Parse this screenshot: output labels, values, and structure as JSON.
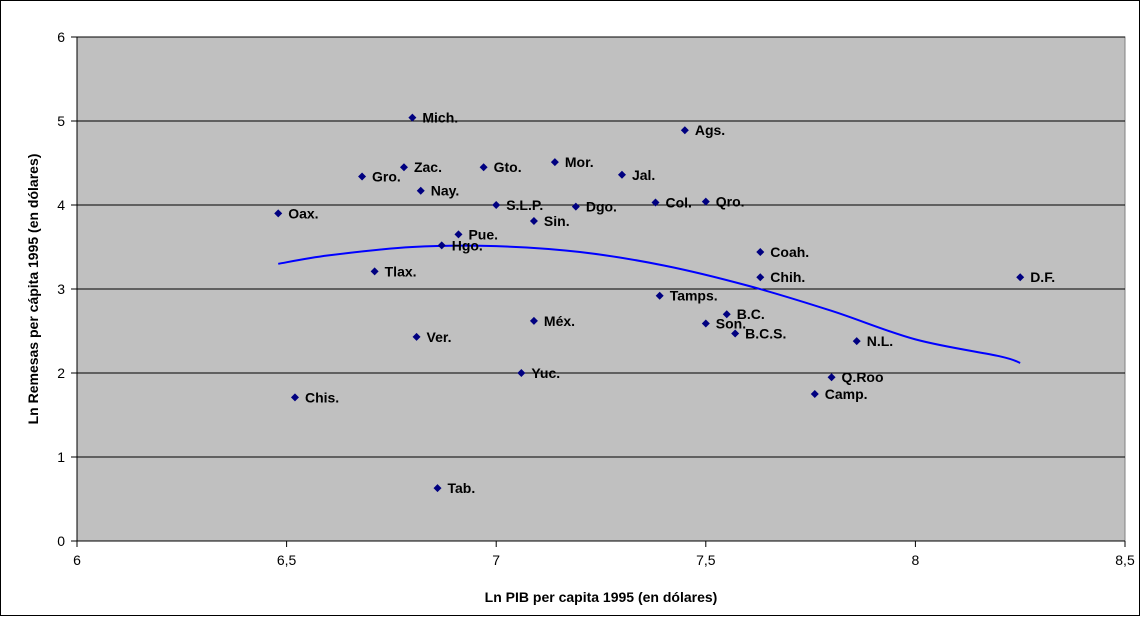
{
  "chart_data": {
    "type": "scatter",
    "title": "",
    "xlabel": "Ln PIB per capita 1995 (en dólares)",
    "ylabel": "Ln Remesas per cápita 1995 (en dólares)",
    "xlim": [
      6,
      8.5
    ],
    "ylim": [
      0,
      6
    ],
    "x_ticks": [
      6,
      6.5,
      7,
      7.5,
      8,
      8.5
    ],
    "x_tick_labels": [
      "6",
      "6,5",
      "7",
      "7,5",
      "8",
      "8,5"
    ],
    "y_ticks": [
      0,
      1,
      2,
      3,
      4,
      5,
      6
    ],
    "y_tick_labels": [
      "0",
      "1",
      "2",
      "3",
      "4",
      "5",
      "6"
    ],
    "grid": "horizontal",
    "legend": "none",
    "colors": {
      "plot_background": "#c0c0c0",
      "marker": "#000080",
      "trend_line": "#0000ff",
      "gridline": "#000000"
    },
    "points": [
      {
        "label": "Mich.",
        "x": 6.8,
        "y": 5.04
      },
      {
        "label": "Ags.",
        "x": 7.45,
        "y": 4.89
      },
      {
        "label": "Zac.",
        "x": 6.78,
        "y": 4.45
      },
      {
        "label": "Gto.",
        "x": 6.97,
        "y": 4.45
      },
      {
        "label": "Mor.",
        "x": 7.14,
        "y": 4.51
      },
      {
        "label": "Gro.",
        "x": 6.68,
        "y": 4.34
      },
      {
        "label": "Jal.",
        "x": 7.3,
        "y": 4.36
      },
      {
        "label": "Nay.",
        "x": 6.82,
        "y": 4.17
      },
      {
        "label": "S.L.P.",
        "x": 7.0,
        "y": 4.0
      },
      {
        "label": "Col.",
        "x": 7.38,
        "y": 4.03
      },
      {
        "label": "Qro.",
        "x": 7.5,
        "y": 4.04
      },
      {
        "label": "Oax.",
        "x": 6.48,
        "y": 3.9
      },
      {
        "label": "Dgo.",
        "x": 7.19,
        "y": 3.98
      },
      {
        "label": "Sin.",
        "x": 7.09,
        "y": 3.81
      },
      {
        "label": "Pue.",
        "x": 6.91,
        "y": 3.65
      },
      {
        "label": "Hgo.",
        "x": 6.87,
        "y": 3.52
      },
      {
        "label": "Coah.",
        "x": 7.63,
        "y": 3.44
      },
      {
        "label": "Tlax.",
        "x": 6.71,
        "y": 3.21
      },
      {
        "label": "Chih.",
        "x": 7.63,
        "y": 3.14
      },
      {
        "label": "D.F.",
        "x": 8.25,
        "y": 3.14
      },
      {
        "label": "Tamps.",
        "x": 7.39,
        "y": 2.92
      },
      {
        "label": "B.C.",
        "x": 7.55,
        "y": 2.7
      },
      {
        "label": "Méx.",
        "x": 7.09,
        "y": 2.62
      },
      {
        "label": "Son.",
        "x": 7.5,
        "y": 2.59
      },
      {
        "label": "B.C.S.",
        "x": 7.57,
        "y": 2.47
      },
      {
        "label": "Ver.",
        "x": 6.81,
        "y": 2.43
      },
      {
        "label": "N.L.",
        "x": 7.86,
        "y": 2.38
      },
      {
        "label": "Yuc.",
        "x": 7.06,
        "y": 2.0
      },
      {
        "label": "Q.Roo",
        "x": 7.8,
        "y": 1.95
      },
      {
        "label": "Camp.",
        "x": 7.76,
        "y": 1.75
      },
      {
        "label": "Chis.",
        "x": 6.52,
        "y": 1.71
      },
      {
        "label": "Tab.",
        "x": 6.86,
        "y": 0.63
      }
    ],
    "trend_line": {
      "type": "polynomial",
      "x": [
        6.48,
        6.6,
        6.8,
        7.0,
        7.2,
        7.4,
        7.6,
        7.8,
        8.0,
        8.2,
        8.25
      ],
      "y": [
        3.3,
        3.4,
        3.5,
        3.51,
        3.44,
        3.28,
        3.04,
        2.74,
        2.4,
        2.2,
        2.12
      ]
    }
  }
}
